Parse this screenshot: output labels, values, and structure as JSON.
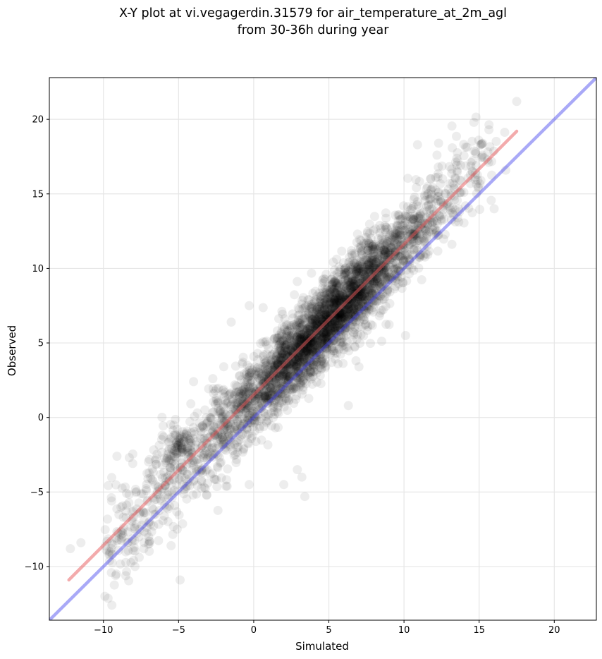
{
  "chart_data": {
    "type": "scatter",
    "title": "X-Y plot at vi.vegagerdin.31579 for air_temperature_at_2m_agl",
    "subtitle": "from 30-36h during year",
    "xlabel": "Simulated",
    "ylabel": "Observed",
    "xlim": [
      -13.6,
      22.8
    ],
    "ylim": [
      -13.6,
      22.8
    ],
    "x_ticks": [
      -10,
      -5,
      0,
      5,
      10,
      15,
      20
    ],
    "y_ticks": [
      -10,
      -5,
      0,
      5,
      10,
      15,
      20
    ],
    "x_tick_labels": [
      "−10",
      "−5",
      "0",
      "5",
      "10",
      "15",
      "20"
    ],
    "y_tick_labels": [
      "−10",
      "−5",
      "0",
      "5",
      "10",
      "15",
      "20"
    ],
    "grid": true,
    "legend": "none",
    "points": {
      "description": "several thousand semi-transparent black markers",
      "color": "#000000",
      "opacity": 0.07,
      "regression_estimate": {
        "slope": 1.03,
        "intercept": 1.35,
        "residual_sd": 1.35
      },
      "x_range": [
        -12.3,
        17.5
      ],
      "outlier_samples": [
        [
          -5.0,
          -1.8
        ],
        [
          -4.7,
          -2.3
        ],
        [
          -5.3,
          -1.2
        ],
        [
          -1.5,
          6.4
        ],
        [
          -0.3,
          7.5
        ],
        [
          10.1,
          5.5
        ],
        [
          16.0,
          14.0
        ],
        [
          17.5,
          21.2
        ],
        [
          7.0,
          3.4
        ],
        [
          6.3,
          0.8
        ],
        [
          3.2,
          -4.0
        ],
        [
          2.0,
          -4.5
        ],
        [
          -9.1,
          -2.6
        ],
        [
          -12.2,
          -8.8
        ],
        [
          -11.5,
          -8.4
        ],
        [
          -4.9,
          -10.9
        ],
        [
          -7.9,
          -10.0
        ],
        [
          -0.3,
          -4.5
        ],
        [
          3.4,
          -5.3
        ],
        [
          10.9,
          18.3
        ],
        [
          12.3,
          18.4
        ],
        [
          14.8,
          16.9
        ],
        [
          2.9,
          -3.5
        ],
        [
          -5.5,
          -8.6
        ]
      ]
    },
    "lines": [
      {
        "name": "",
        "color": "#e8575a",
        "opacity": 0.5,
        "x": [
          -12.3,
          17.5
        ],
        "y": [
          -10.9,
          19.2
        ]
      },
      {
        "name": "",
        "color": "#4040ee",
        "opacity": 0.45,
        "x": [
          -13.6,
          22.8
        ],
        "y": [
          -13.6,
          22.8
        ]
      }
    ]
  }
}
